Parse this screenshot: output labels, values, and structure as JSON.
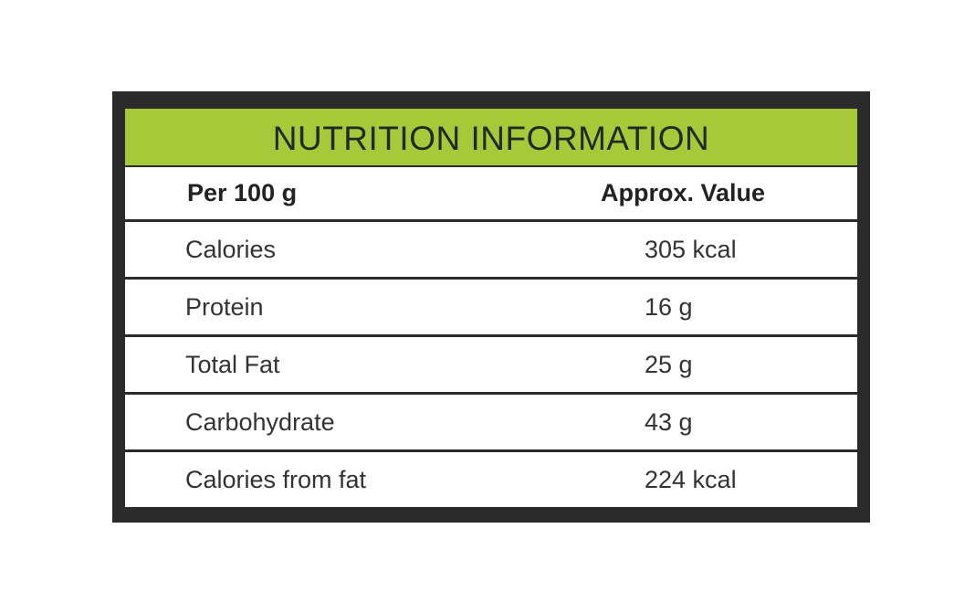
{
  "title": "NUTRITION INFORMATION",
  "header": {
    "left": "Per 100 g",
    "right": "Approx. Value"
  },
  "rows": [
    {
      "nutrient": "Calories",
      "value": "305 kcal"
    },
    {
      "nutrient": "Protein",
      "value": "16 g"
    },
    {
      "nutrient": "Total Fat",
      "value": "25 g"
    },
    {
      "nutrient": "Carbohydrate",
      "value": "43 g"
    },
    {
      "nutrient": "Calories from fat",
      "value": "224 kcal"
    }
  ],
  "colors": {
    "frame": "#2b2b2b",
    "title_bar": "#a6c93a",
    "title_text": "#1f2a22",
    "row_background": "#ffffff"
  }
}
